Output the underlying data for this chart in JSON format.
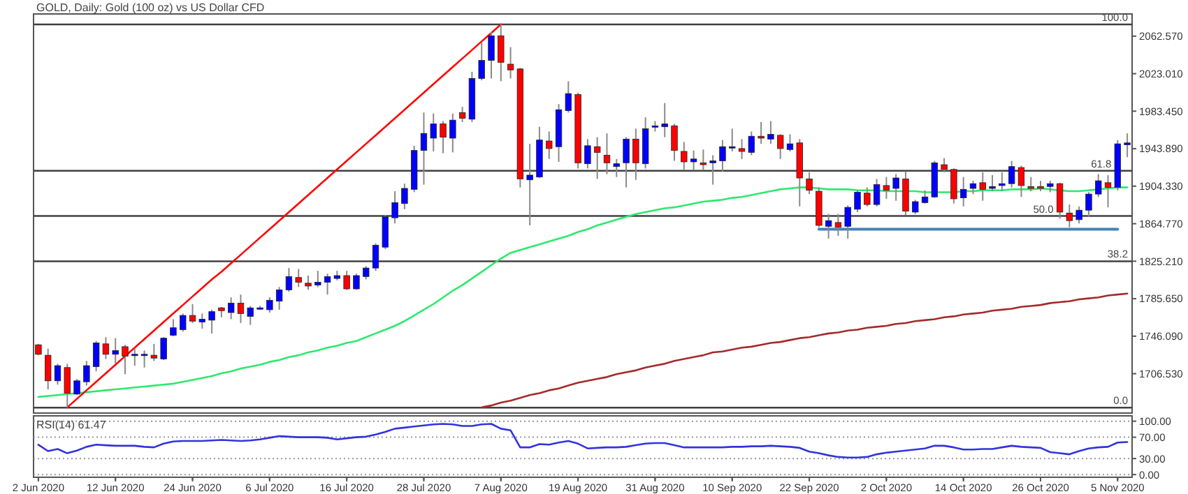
{
  "chart_data": [
    {
      "type": "candlestick",
      "title": "GOLD, Daily: Gold (100 oz) vs US Dollar CFD",
      "categories": [
        null,
        null,
        null,
        null,
        null,
        null,
        null,
        null,
        null,
        null,
        null,
        null,
        null,
        null,
        null,
        null,
        null,
        null,
        null,
        null,
        null,
        null,
        null,
        null,
        null,
        null,
        null,
        null,
        null,
        null,
        null,
        null,
        null,
        null,
        null,
        null,
        null,
        null,
        null,
        null,
        null,
        null,
        null,
        null,
        null,
        null,
        null,
        null,
        null,
        null,
        null,
        null,
        null,
        null,
        null,
        null,
        null,
        null,
        null,
        null,
        null,
        null,
        null,
        null,
        null,
        null,
        null,
        null,
        null,
        null,
        null,
        null,
        null,
        null,
        null,
        null,
        null,
        null,
        null,
        null,
        null,
        null,
        null,
        null,
        null,
        null,
        null,
        null,
        null,
        null,
        null,
        null,
        null,
        null,
        null,
        null,
        null,
        null,
        null,
        null,
        null,
        null,
        null,
        null,
        null,
        null,
        null,
        null,
        null,
        null,
        null,
        null,
        null,
        null
      ],
      "ohlc": [
        [
          1737,
          1738,
          1726,
          1727
        ],
        [
          1726,
          1733,
          1690,
          1699
        ],
        [
          1699,
          1717,
          1695,
          1715
        ],
        [
          1713,
          1717,
          1671,
          1686
        ],
        [
          1685,
          1701,
          1684,
          1699
        ],
        [
          1698,
          1720,
          1694,
          1715
        ],
        [
          1714,
          1741,
          1709,
          1739
        ],
        [
          1738,
          1745,
          1722,
          1727
        ],
        [
          1727,
          1744,
          1717,
          1731
        ],
        [
          1735,
          1737,
          1706,
          1725
        ],
        [
          1726,
          1733,
          1715,
          1727
        ],
        [
          1726,
          1731,
          1713,
          1727
        ],
        [
          1726,
          1738,
          1720,
          1723
        ],
        [
          1722,
          1745,
          1721,
          1744
        ],
        [
          1747,
          1764,
          1746,
          1755
        ],
        [
          1753,
          1770,
          1751,
          1768
        ],
        [
          1768,
          1780,
          1760,
          1762
        ],
        [
          1761,
          1770,
          1754,
          1764
        ],
        [
          1763,
          1774,
          1749,
          1772
        ],
        [
          1776,
          1777,
          1766,
          1773
        ],
        [
          1771,
          1787,
          1764,
          1781
        ],
        [
          1781,
          1790,
          1760,
          1770
        ],
        [
          1767,
          1778,
          1758,
          1776
        ],
        [
          1775,
          1778,
          1774,
          1776
        ],
        [
          1774,
          1787,
          1771,
          1784
        ],
        [
          1783,
          1798,
          1774,
          1795
        ],
        [
          1795,
          1818,
          1793,
          1809
        ],
        [
          1808,
          1817,
          1798,
          1803
        ],
        [
          1802,
          1810,
          1795,
          1799
        ],
        [
          1800,
          1815,
          1798,
          1803
        ],
        [
          1803,
          1812,
          1790,
          1809
        ],
        [
          1807,
          1815,
          1805,
          1810
        ],
        [
          1810,
          1815,
          1795,
          1796
        ],
        [
          1796,
          1812,
          1795,
          1810
        ],
        [
          1809,
          1820,
          1806,
          1818
        ],
        [
          1818,
          1844,
          1815,
          1842
        ],
        [
          1840,
          1874,
          1838,
          1872
        ],
        [
          1871,
          1899,
          1865,
          1887
        ],
        [
          1886,
          1907,
          1880,
          1902
        ],
        [
          1901,
          1947,
          1898,
          1942
        ],
        [
          1942,
          1982,
          1906,
          1960
        ],
        [
          1955,
          1981,
          1941,
          1970
        ],
        [
          1970,
          1973,
          1939,
          1956
        ],
        [
          1955,
          1981,
          1940,
          1974
        ],
        [
          1982,
          1988,
          1972,
          1976
        ],
        [
          1975,
          2025,
          1972,
          2018
        ],
        [
          2018,
          2056,
          2016,
          2037
        ],
        [
          2037,
          2067,
          2018,
          2063
        ],
        [
          2063,
          2075,
          2015,
          2035
        ],
        [
          2033,
          2051,
          2018,
          2027
        ],
        [
          2028,
          2029,
          1903,
          1912
        ],
        [
          1911,
          1949,
          1863,
          1916
        ],
        [
          1914,
          1967,
          1913,
          1953
        ],
        [
          1952,
          1962,
          1933,
          1944
        ],
        [
          1946,
          1991,
          1930,
          1985
        ],
        [
          1984,
          2015,
          1982,
          2002
        ],
        [
          2001,
          2003,
          1923,
          1929
        ],
        [
          1928,
          1954,
          1923,
          1947
        ],
        [
          1946,
          1956,
          1912,
          1940
        ],
        [
          1937,
          1960,
          1917,
          1929
        ],
        [
          1925,
          1933,
          1914,
          1928
        ],
        [
          1929,
          1956,
          1903,
          1954
        ],
        [
          1954,
          1965,
          1911,
          1929
        ],
        [
          1928,
          1977,
          1923,
          1965
        ],
        [
          1967,
          1973,
          1962,
          1968
        ],
        [
          1967,
          1992,
          1956,
          1970
        ],
        [
          1968,
          1970,
          1931,
          1942
        ],
        [
          1941,
          1951,
          1921,
          1930
        ],
        [
          1930,
          1942,
          1921,
          1933
        ],
        [
          1929,
          1943,
          1921,
          1927
        ],
        [
          1929,
          1937,
          1906,
          1931
        ],
        [
          1931,
          1953,
          1920,
          1946
        ],
        [
          1945,
          1965,
          1941,
          1946
        ],
        [
          1944,
          1954,
          1933,
          1941
        ],
        [
          1940,
          1962,
          1937,
          1957
        ],
        [
          1957,
          1972,
          1949,
          1955
        ],
        [
          1954,
          1973,
          1949,
          1959
        ],
        [
          1958,
          1959,
          1933,
          1944
        ],
        [
          1943,
          1959,
          1941,
          1949
        ],
        [
          1950,
          1954,
          1883,
          1913
        ],
        [
          1912,
          1919,
          1896,
          1900
        ],
        [
          1899,
          1903,
          1861,
          1863
        ],
        [
          1862,
          1875,
          1849,
          1868
        ],
        [
          1866,
          1875,
          1852,
          1861
        ],
        [
          1862,
          1884,
          1849,
          1882
        ],
        [
          1880,
          1900,
          1877,
          1898
        ],
        [
          1897,
          1903,
          1883,
          1885
        ],
        [
          1885,
          1912,
          1883,
          1906
        ],
        [
          1905,
          1914,
          1891,
          1900
        ],
        [
          1902,
          1917,
          1889,
          1913
        ],
        [
          1912,
          1920,
          1874,
          1878
        ],
        [
          1877,
          1890,
          1875,
          1888
        ],
        [
          1887,
          1900,
          1886,
          1893
        ],
        [
          1893,
          1931,
          1892,
          1929
        ],
        [
          1927,
          1934,
          1919,
          1922
        ],
        [
          1922,
          1923,
          1886,
          1891
        ],
        [
          1892,
          1914,
          1883,
          1901
        ],
        [
          1902,
          1910,
          1896,
          1907
        ],
        [
          1908,
          1919,
          1889,
          1901
        ],
        [
          1902,
          1916,
          1899,
          1904
        ],
        [
          1905,
          1919,
          1899,
          1907
        ],
        [
          1907,
          1931,
          1903,
          1925
        ],
        [
          1924,
          1926,
          1893,
          1905
        ],
        [
          1904,
          1914,
          1899,
          1902
        ],
        [
          1904,
          1910,
          1899,
          1902
        ],
        [
          1904,
          1910,
          1898,
          1907
        ],
        [
          1907,
          1908,
          1870,
          1877
        ],
        [
          1876,
          1885,
          1861,
          1868
        ],
        [
          1869,
          1883,
          1865,
          1879
        ],
        [
          1879,
          1898,
          1872,
          1896
        ],
        [
          1896,
          1917,
          1893,
          1910
        ],
        [
          1908,
          1916,
          1882,
          1903
        ],
        [
          1903,
          1953,
          1900,
          1949
        ],
        [
          1948,
          1960,
          1935,
          1950
        ]
      ],
      "colors": [
        "#ff0000",
        "#ff0000",
        "#0000ff",
        "#ff0000",
        "#0000ff",
        "#0000ff",
        "#0000ff",
        "#ff0000",
        "#0000ff",
        "#ff0000",
        "#0000ff",
        "#0000ff",
        "#ff0000",
        "#0000ff",
        "#0000ff",
        "#0000ff",
        "#ff0000",
        "#0000ff",
        "#0000ff",
        "#ff0000",
        "#0000ff",
        "#ff0000",
        "#0000ff",
        "#0000ff",
        "#0000ff",
        "#0000ff",
        "#0000ff",
        "#ff0000",
        "#ff0000",
        "#0000ff",
        "#0000ff",
        "#0000ff",
        "#ff0000",
        "#0000ff",
        "#0000ff",
        "#0000ff",
        "#0000ff",
        "#0000ff",
        "#0000ff",
        "#0000ff",
        "#0000ff",
        "#0000ff",
        "#ff0000",
        "#0000ff",
        "#ff0000",
        "#0000ff",
        "#0000ff",
        "#0000ff",
        "#ff0000",
        "#ff0000",
        "#ff0000",
        "#0000ff",
        "#0000ff",
        "#ff0000",
        "#0000ff",
        "#0000ff",
        "#ff0000",
        "#0000ff",
        "#ff0000",
        "#ff0000",
        "#0000ff",
        "#0000ff",
        "#ff0000",
        "#0000ff",
        "#0000ff",
        "#0000ff",
        "#ff0000",
        "#ff0000",
        "#0000ff",
        "#ff0000",
        "#0000ff",
        "#0000ff",
        "#0000ff",
        "#ff0000",
        "#0000ff",
        "#ff0000",
        "#0000ff",
        "#ff0000",
        "#0000ff",
        "#ff0000",
        "#ff0000",
        "#ff0000",
        "#0000ff",
        "#ff0000",
        "#0000ff",
        "#0000ff",
        "#ff0000",
        "#0000ff",
        "#ff0000",
        "#0000ff",
        "#ff0000",
        "#0000ff",
        "#0000ff",
        "#0000ff",
        "#ff0000",
        "#ff0000",
        "#0000ff",
        "#0000ff",
        "#ff0000",
        "#0000ff",
        "#0000ff",
        "#0000ff",
        "#ff0000",
        "#ff0000",
        "#ff0000",
        "#0000ff",
        "#ff0000",
        "#ff0000",
        "#0000ff",
        "#0000ff",
        "#0000ff",
        "#ff0000",
        "#0000ff",
        "#0000ff"
      ],
      "series": [
        {
          "type": "line",
          "color": "#2ee86e",
          "values": [
            1682,
            1683,
            1684,
            1685,
            1686,
            1687,
            1688,
            1689,
            1690,
            1691,
            1692,
            1693,
            1694,
            1695,
            1696,
            1698,
            1700,
            1702,
            1704,
            1707,
            1709,
            1712,
            1714,
            1716,
            1719,
            1721,
            1724,
            1726,
            1729,
            1731,
            1734,
            1736,
            1739,
            1741,
            1745,
            1749,
            1753,
            1757,
            1762,
            1768,
            1774,
            1780,
            1787,
            1794,
            1800,
            1807,
            1814,
            1821,
            1828,
            1834,
            1837,
            1840,
            1843,
            1846,
            1849,
            1852,
            1856,
            1859,
            1863,
            1866,
            1869,
            1872,
            1875,
            1877,
            1879,
            1881,
            1882,
            1884,
            1886,
            1888,
            1889,
            1890,
            1892,
            1893,
            1895,
            1897,
            1899,
            1901,
            1902,
            1903,
            1903,
            1902,
            1901,
            1901,
            1901,
            1900,
            1900,
            1900,
            1899,
            1899,
            1899,
            1899,
            1898,
            1898,
            1898,
            1898,
            1899,
            1899,
            1900,
            1900,
            1900,
            1901,
            1901,
            1901,
            1902,
            1901,
            1900,
            1899,
            1899,
            1900,
            1901,
            1902,
            1903,
            1903
          ]
        },
        {
          "type": "line",
          "color": "#a52a2a",
          "values": [
            null,
            null,
            null,
            null,
            null,
            null,
            null,
            null,
            null,
            null,
            null,
            null,
            null,
            null,
            null,
            null,
            null,
            null,
            null,
            null,
            null,
            null,
            null,
            null,
            null,
            null,
            null,
            null,
            null,
            null,
            null,
            null,
            null,
            null,
            null,
            null,
            null,
            null,
            null,
            null,
            null,
            null,
            null,
            null,
            null,
            null,
            1671,
            1673,
            1676,
            1678,
            1681,
            1684,
            1686,
            1689,
            1691,
            1694,
            1697,
            1699,
            1701,
            1703,
            1706,
            1708,
            1710,
            1713,
            1715,
            1717,
            1720,
            1722,
            1724,
            1726,
            1729,
            1730,
            1732,
            1734,
            1735,
            1737,
            1739,
            1740,
            1742,
            1744,
            1745,
            1747,
            1749,
            1750,
            1752,
            1753,
            1755,
            1756,
            1757,
            1759,
            1760,
            1762,
            1763,
            1764,
            1766,
            1767,
            1769,
            1770,
            1771,
            1773,
            1774,
            1775,
            1777,
            1778,
            1779,
            1781,
            1782,
            1783,
            1785,
            1786,
            1787,
            1789,
            1790,
            1791
          ]
        },
        {
          "type": "line",
          "color": "#ff0000",
          "values": [
            null,
            null,
            null,
            1671,
            1680,
            1689,
            1698,
            1707,
            1716,
            1725,
            1734,
            1743,
            1752,
            1761,
            1770,
            1779,
            1788,
            1797,
            1806,
            1814,
            1823,
            1832,
            1841,
            1850,
            1859,
            1868,
            1877,
            1886,
            1895,
            1904,
            1913,
            1922,
            1931,
            1940,
            1949,
            1958,
            1967,
            1976,
            1985,
            1994,
            2003,
            2012,
            2021,
            2030,
            2039,
            2048,
            2057,
            2066,
            2075,
            null,
            null,
            null,
            null,
            null,
            null,
            null,
            null,
            null,
            null,
            null,
            null,
            null,
            null,
            null,
            null,
            null,
            null,
            null,
            null,
            null,
            null,
            null,
            null,
            null,
            null,
            null,
            null,
            null,
            null,
            null,
            null,
            null,
            null,
            null,
            null,
            null,
            null,
            null,
            null,
            null,
            null,
            null,
            null,
            null,
            null,
            null,
            null,
            null,
            null,
            null,
            null,
            null,
            null,
            null,
            null,
            null,
            null,
            null,
            null,
            null,
            null,
            null,
            null,
            null
          ]
        },
        {
          "type": "line",
          "color": "#4682b4",
          "values": [
            null,
            null,
            null,
            null,
            null,
            null,
            null,
            null,
            null,
            null,
            null,
            null,
            null,
            null,
            null,
            null,
            null,
            null,
            null,
            null,
            null,
            null,
            null,
            null,
            null,
            null,
            null,
            null,
            null,
            null,
            null,
            null,
            null,
            null,
            null,
            null,
            null,
            null,
            null,
            null,
            null,
            null,
            null,
            null,
            null,
            null,
            null,
            null,
            null,
            null,
            null,
            null,
            null,
            null,
            null,
            null,
            null,
            null,
            null,
            null,
            null,
            null,
            null,
            null,
            null,
            null,
            null,
            null,
            null,
            null,
            null,
            null,
            null,
            null,
            null,
            null,
            null,
            null,
            null,
            null,
            null,
            1859,
            1859,
            1859,
            1859,
            1859,
            1859,
            1859,
            1859,
            1859,
            1859,
            1859,
            1859,
            1859,
            1859,
            1859,
            1859,
            1859,
            1859,
            1859,
            1859,
            1859,
            1859,
            1859,
            1859,
            1859,
            1859,
            1859,
            1859,
            1859,
            1859,
            1859,
            1859,
            null
          ]
        }
      ],
      "ref_lines": [
        {
          "axis": "y",
          "value": 2075,
          "color": "#404040"
        },
        {
          "axis": "y",
          "value": 1920.6,
          "color": "#404040"
        },
        {
          "axis": "y",
          "value": 1872.9,
          "color": "#404040"
        },
        {
          "axis": "y",
          "value": 1825.1,
          "color": "#404040"
        },
        {
          "axis": "y",
          "value": 1670.7,
          "color": "#404040"
        }
      ],
      "annotations": [
        {
          "text": "100.0",
          "y": 2075
        },
        {
          "text": "61.8",
          "y": 1920.6
        },
        {
          "text": "50.0",
          "y": 1872.9
        },
        {
          "text": "38.2",
          "y": 1825.1
        },
        {
          "text": "0.0",
          "y": 1670.7
        }
      ],
      "ylim": [
        1665,
        2086
      ],
      "yticks": [
        {
          "value": 1706.53,
          "label": "1706.530"
        },
        {
          "value": 1746.09,
          "label": "1746.090"
        },
        {
          "value": 1785.65,
          "label": "1785.650"
        },
        {
          "value": 1825.21,
          "label": "1825.210"
        },
        {
          "value": 1864.77,
          "label": "1864.770"
        },
        {
          "value": 1904.33,
          "label": "1904.330"
        },
        {
          "value": 1943.89,
          "label": "1943.890"
        },
        {
          "value": 1983.45,
          "label": "1983.450"
        },
        {
          "value": 2023.01,
          "label": "2023.010"
        },
        {
          "value": 2062.57,
          "label": "2062.570"
        }
      ],
      "tick_labels": "y"
    },
    {
      "type": "line",
      "title": "RSI(14) 61.47",
      "categories": [
        "2 Jun 2020",
        null,
        null,
        null,
        null,
        null,
        null,
        null,
        "12 Jun 2020",
        null,
        null,
        null,
        null,
        null,
        null,
        null,
        "24 Jun 2020",
        null,
        null,
        null,
        null,
        null,
        null,
        null,
        "6 Jul 2020",
        null,
        null,
        null,
        null,
        null,
        null,
        null,
        "16 Jul 2020",
        null,
        null,
        null,
        null,
        null,
        null,
        null,
        "28 Jul 2020",
        null,
        null,
        null,
        null,
        null,
        null,
        null,
        "7 Aug 2020",
        null,
        null,
        null,
        null,
        null,
        null,
        null,
        "19 Aug 2020",
        null,
        null,
        null,
        null,
        null,
        null,
        null,
        "31 Aug 2020",
        null,
        null,
        null,
        null,
        null,
        null,
        null,
        "10 Sep 2020",
        null,
        null,
        null,
        null,
        null,
        null,
        null,
        "22 Sep 2020",
        null,
        null,
        null,
        null,
        null,
        null,
        null,
        "2 Oct 2020",
        null,
        null,
        null,
        null,
        null,
        null,
        null,
        "14 Oct 2020",
        null,
        null,
        null,
        null,
        null,
        null,
        null,
        "26 Oct 2020",
        null,
        null,
        null,
        null,
        null,
        null,
        null,
        "5 Nov 2020",
        null
      ],
      "series": [
        {
          "color": "#3333dd",
          "values": [
            56,
            44,
            48,
            40,
            45,
            52,
            56,
            55,
            54,
            54,
            54,
            52,
            51,
            58,
            62,
            63,
            63,
            63,
            64,
            65,
            64,
            63,
            64,
            66,
            69,
            72,
            71,
            70,
            70,
            70,
            69,
            66,
            68,
            70,
            71,
            75,
            80,
            86,
            88,
            90,
            92,
            94,
            95,
            94,
            91,
            91,
            94,
            95,
            86,
            83,
            51,
            51,
            57,
            56,
            60,
            63,
            58,
            49,
            50,
            51,
            51,
            52,
            55,
            58,
            59,
            59,
            55,
            51,
            51,
            51,
            51,
            51,
            52,
            52,
            53,
            53,
            54,
            53,
            52,
            50,
            43,
            40,
            36,
            33,
            32,
            32,
            33,
            38,
            41,
            43,
            45,
            47,
            49,
            54,
            54,
            51,
            47,
            47,
            48,
            48,
            51,
            54,
            52,
            51,
            50,
            42,
            40,
            38,
            44,
            49,
            51,
            52,
            60,
            61
          ]
        }
      ],
      "ylim": [
        -5,
        110
      ],
      "yticks": [
        {
          "value": 0,
          "label": "0.00"
        },
        {
          "value": 30,
          "label": "30.00"
        },
        {
          "value": 70,
          "label": "70.00"
        },
        {
          "value": 100,
          "label": "100.00"
        }
      ],
      "grid": "y"
    }
  ]
}
